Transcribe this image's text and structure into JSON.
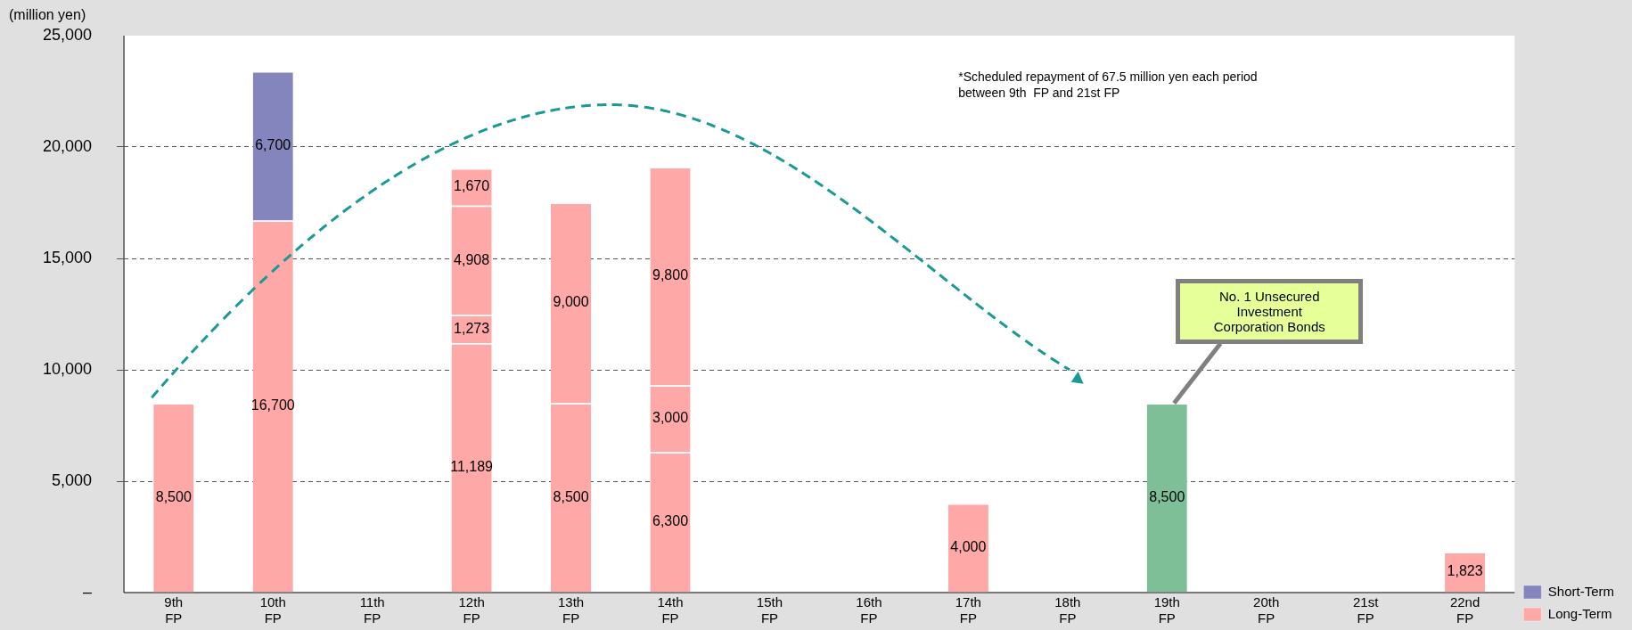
{
  "chart_data": {
    "type": "bar",
    "stacked": true,
    "ylabel": "(million yen)",
    "categories": [
      "9th FP",
      "10th FP",
      "11th FP",
      "12th FP",
      "13th FP",
      "14th FP",
      "15th FP",
      "16th FP",
      "17th FP",
      "18th FP",
      "19th FP",
      "20th FP",
      "21st FP",
      "22nd FP"
    ],
    "series": [
      {
        "name": "Long-Term",
        "color": "#ffa8a8",
        "values": [
          8500,
          16700,
          null,
          11189,
          8500,
          6300,
          null,
          null,
          4000,
          null,
          null,
          null,
          null,
          1823
        ],
        "value_labels": [
          "8,500",
          "16,700",
          null,
          "11,189",
          "8,500",
          "6,300",
          null,
          null,
          "4,000",
          null,
          null,
          null,
          null,
          "1,823"
        ]
      },
      {
        "color": "#ffa8a8",
        "values": [
          null,
          null,
          null,
          1273,
          9000,
          3000,
          null,
          null,
          null,
          null,
          null,
          null,
          null,
          null
        ],
        "value_labels": [
          null,
          null,
          null,
          "1,273",
          "9,000",
          "3,000",
          null,
          null,
          null,
          null,
          null,
          null,
          null,
          null
        ]
      },
      {
        "color": "#ffa8a8",
        "values": [
          null,
          null,
          null,
          4908,
          null,
          9800,
          null,
          null,
          null,
          null,
          null,
          null,
          null,
          null
        ],
        "value_labels": [
          null,
          null,
          null,
          "4,908",
          null,
          "9,800",
          null,
          null,
          null,
          null,
          null,
          null,
          null,
          null
        ]
      },
      {
        "color": "#ffa8a8",
        "values": [
          null,
          null,
          null,
          1670,
          null,
          null,
          null,
          null,
          null,
          null,
          null,
          null,
          null,
          null
        ],
        "value_labels": [
          null,
          null,
          null,
          "1,670",
          null,
          null,
          null,
          null,
          null,
          null,
          null,
          null,
          null,
          null
        ]
      },
      {
        "name": "Short-Term",
        "color": "#8585bd",
        "values": [
          null,
          6700,
          null,
          null,
          null,
          null,
          null,
          null,
          null,
          null,
          null,
          null,
          null,
          null
        ],
        "value_labels": [
          null,
          "6,700",
          null,
          null,
          null,
          null,
          null,
          null,
          null,
          null,
          null,
          null,
          null,
          null
        ]
      },
      {
        "color": "#7fbf98",
        "values": [
          null,
          null,
          null,
          null,
          null,
          null,
          null,
          null,
          null,
          null,
          8500,
          null,
          null,
          null
        ],
        "value_labels": [
          null,
          null,
          null,
          null,
          null,
          null,
          null,
          null,
          null,
          null,
          "8,500",
          null,
          null,
          null
        ]
      }
    ],
    "ylim": [
      0,
      25000
    ],
    "yticks": [
      {
        "value": 0,
        "label": "–"
      },
      {
        "value": 5000,
        "label": "5,000"
      },
      {
        "value": 10000,
        "label": "10,000"
      },
      {
        "value": 15000,
        "label": "15,000"
      },
      {
        "value": 20000,
        "label": "20,000"
      },
      {
        "value": 25000,
        "label": "25,000"
      }
    ],
    "grid": "y",
    "legend": "bottom right",
    "annotations": [
      "*Scheduled repayment of 67.5 million yen each period\nbetween 9th  FP and 21st FP",
      {
        "text": "No. 1 Unsecured\nInvestment\nCorporation Bonds",
        "x": "19th FP",
        "y": 8500
      }
    ]
  }
}
